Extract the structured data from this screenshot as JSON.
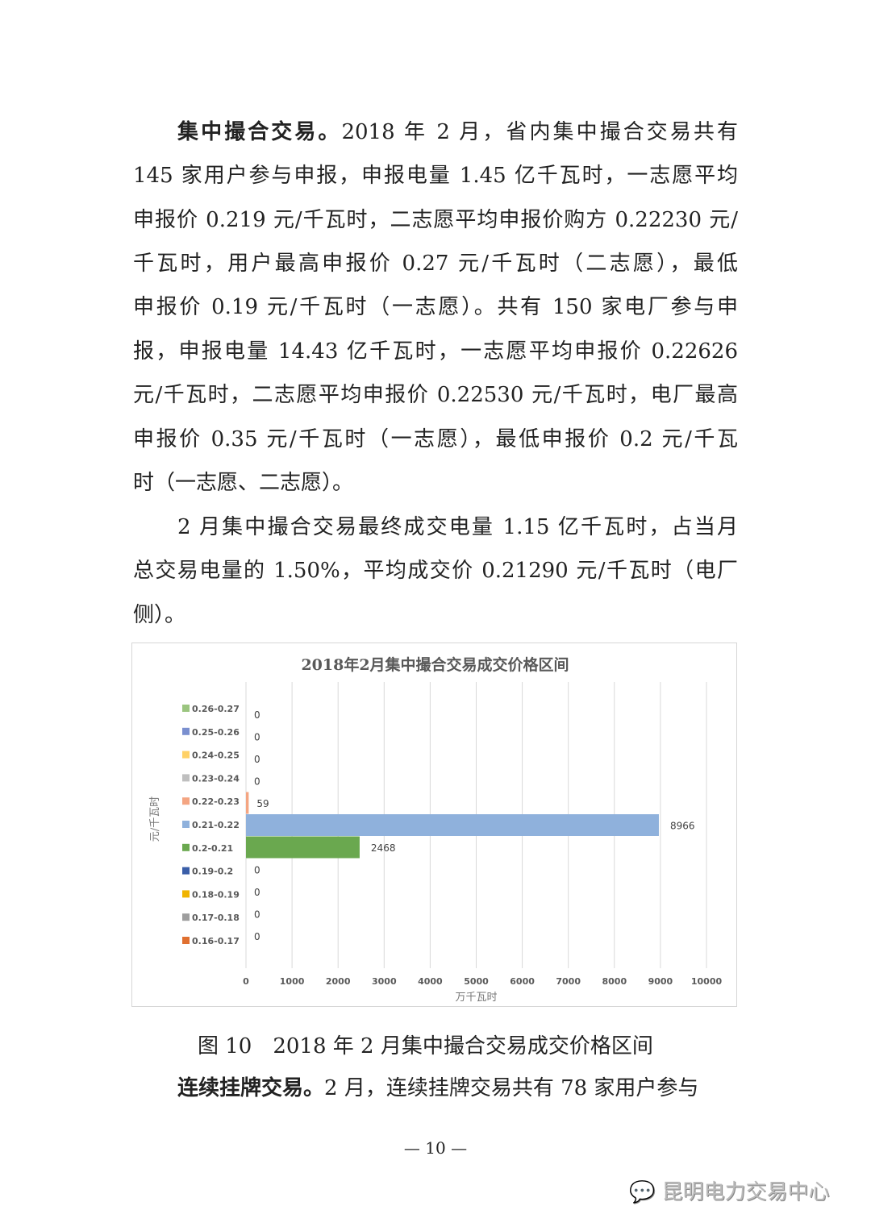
{
  "paragraph1": {
    "lead": "集中撮合交易。",
    "lines": [
      "2018 年 2 月，省内集中撮合交易共有",
      "145 家用户参与申报，申报电量 1.45 亿千瓦时，一志愿平均",
      "申报价 0.219 元/千瓦时，二志愿平均申报价购方 0.22230 元/",
      "千瓦时，用户最高申报价 0.27 元/千瓦时（二志愿），最低",
      "申报价 0.19 元/千瓦时（一志愿）。共有 150 家电厂参与申",
      "报，申报电量 14.43 亿千瓦时，一志愿平均申报价 0.22626",
      "元/千瓦时，二志愿平均申报价 0.22530 元/千瓦时，电厂最高",
      "申报价 0.35 元/千瓦时（一志愿），最低申报价 0.2 元/千瓦",
      "时（一志愿、二志愿）。"
    ]
  },
  "paragraph2": {
    "lines": [
      "2 月集中撮合交易最终成交电量 1.15 亿千瓦时，占当月",
      "总交易电量的 1.50%，平均成交价 0.21290 元/千瓦时（电厂",
      "侧）。"
    ]
  },
  "chart_data": {
    "type": "bar",
    "orientation": "horizontal",
    "title": "2018年2月集中撮合交易成交价格区间",
    "xlabel": "万千瓦时",
    "ylabel": "元/千瓦时",
    "xlim": [
      0,
      10000
    ],
    "xticks": [
      "0",
      "1000",
      "2000",
      "3000",
      "4000",
      "5000",
      "6000",
      "7000",
      "8000",
      "9000",
      "10000"
    ],
    "grid": true,
    "legend_placement": "left",
    "categories": [
      "0.26-0.27",
      "0.25-0.26",
      "0.24-0.25",
      "0.23-0.24",
      "0.22-0.23",
      "0.21-0.22",
      "0.2-0.21",
      "0.19-0.2",
      "0.18-0.19",
      "0.17-0.18",
      "0.16-0.17"
    ],
    "values": [
      0,
      0,
      0,
      0,
      59,
      8966,
      2468,
      0,
      0,
      0,
      0
    ],
    "colors": [
      "#9bc57f",
      "#7a8fcf",
      "#ffd166",
      "#bfbfbf",
      "#f4a582",
      "#8fb1dc",
      "#6aa84f",
      "#3a5ea8",
      "#f0b400",
      "#9e9e9e",
      "#e07030"
    ]
  },
  "caption": "图 10　2018 年 2 月集中撮合交易成交价格区间",
  "paragraph3": {
    "lead": "连续挂牌交易。",
    "text": "2 月，连续挂牌交易共有 78 家用户参与"
  },
  "page_number": "— 10 —",
  "watermark": "昆明电力交易中心"
}
